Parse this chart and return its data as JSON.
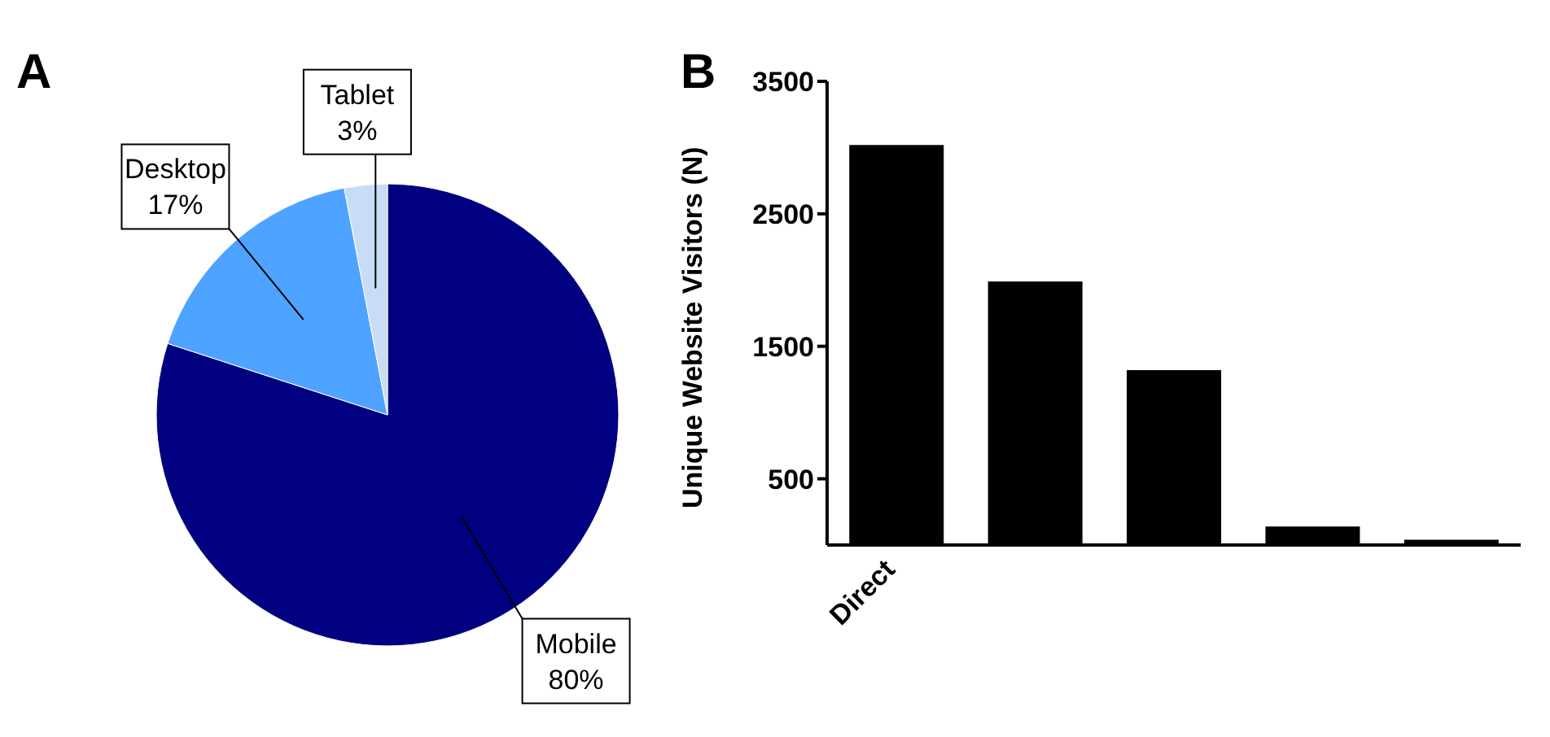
{
  "chart_data": [
    {
      "type": "pie",
      "categories": [
        "Mobile",
        "Desktop",
        "Tablet"
      ],
      "values": [
        80,
        17,
        3
      ],
      "colors": [
        "#000080",
        "#4da3ff",
        "#c8ddf5"
      ],
      "data_labels": true,
      "value_labels": [
        "80%",
        "17%",
        "3%"
      ],
      "legend": false,
      "annotations": [
        "A"
      ]
    },
    {
      "type": "bar",
      "categories": [
        "Direct",
        null,
        null,
        null,
        null
      ],
      "values": [
        3020,
        1990,
        1320,
        140,
        40
      ],
      "color": "#000000",
      "ylabel": "Unique  Website Visitors (N)",
      "ylim": [
        0,
        3500
      ],
      "yticks": [
        500,
        1500,
        2500,
        3500
      ],
      "grid": false,
      "legend": false,
      "annotations": [
        "B"
      ]
    }
  ]
}
